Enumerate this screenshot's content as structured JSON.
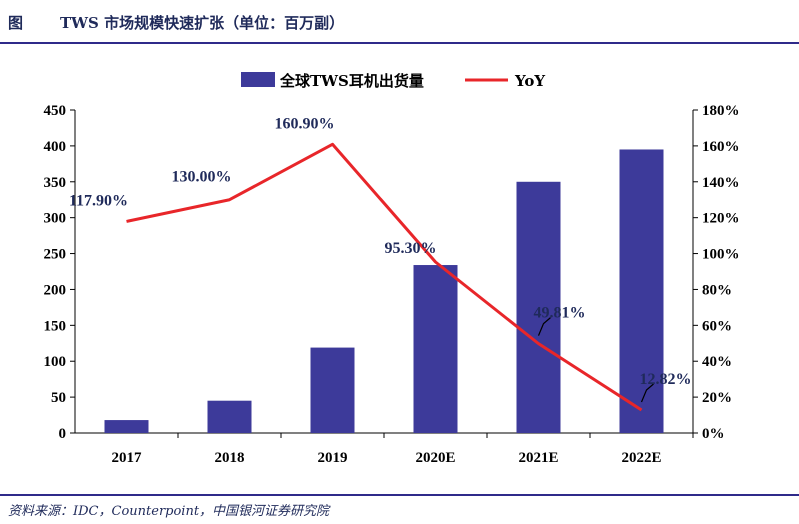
{
  "figure": {
    "label": "图",
    "title": "TWS 市场规模快速扩张（单位：百万副）",
    "source": "资料来源：IDC，Counterpoint，中国银河证券研究院"
  },
  "chart_data": {
    "type": "bar",
    "categories": [
      "2017",
      "2018",
      "2019",
      "2020E",
      "2021E",
      "2022E"
    ],
    "series": [
      {
        "name": "全球TWS耳机出货量",
        "type": "bar",
        "axis": "left",
        "values": [
          18,
          45,
          119,
          234,
          350,
          395
        ],
        "color": "#3d3a9a"
      },
      {
        "name": "YoY",
        "type": "line",
        "axis": "right",
        "values": [
          117.9,
          130.0,
          160.9,
          95.3,
          49.81,
          12.82
        ],
        "color": "#e8262a"
      }
    ],
    "data_labels": [
      "117.90%",
      "130.00%",
      "160.90%",
      "95.30%",
      "49.81%",
      "12.82%"
    ],
    "y_left": {
      "range": [
        0,
        450
      ],
      "ticks": [
        "0",
        "50",
        "100",
        "150",
        "200",
        "250",
        "300",
        "350",
        "400",
        "450"
      ]
    },
    "y_right": {
      "range": [
        0,
        180
      ],
      "ticks": [
        "0%",
        "20%",
        "40%",
        "60%",
        "80%",
        "100%",
        "120%",
        "140%",
        "160%",
        "180%"
      ]
    },
    "legend_position": "top",
    "grid": false
  }
}
